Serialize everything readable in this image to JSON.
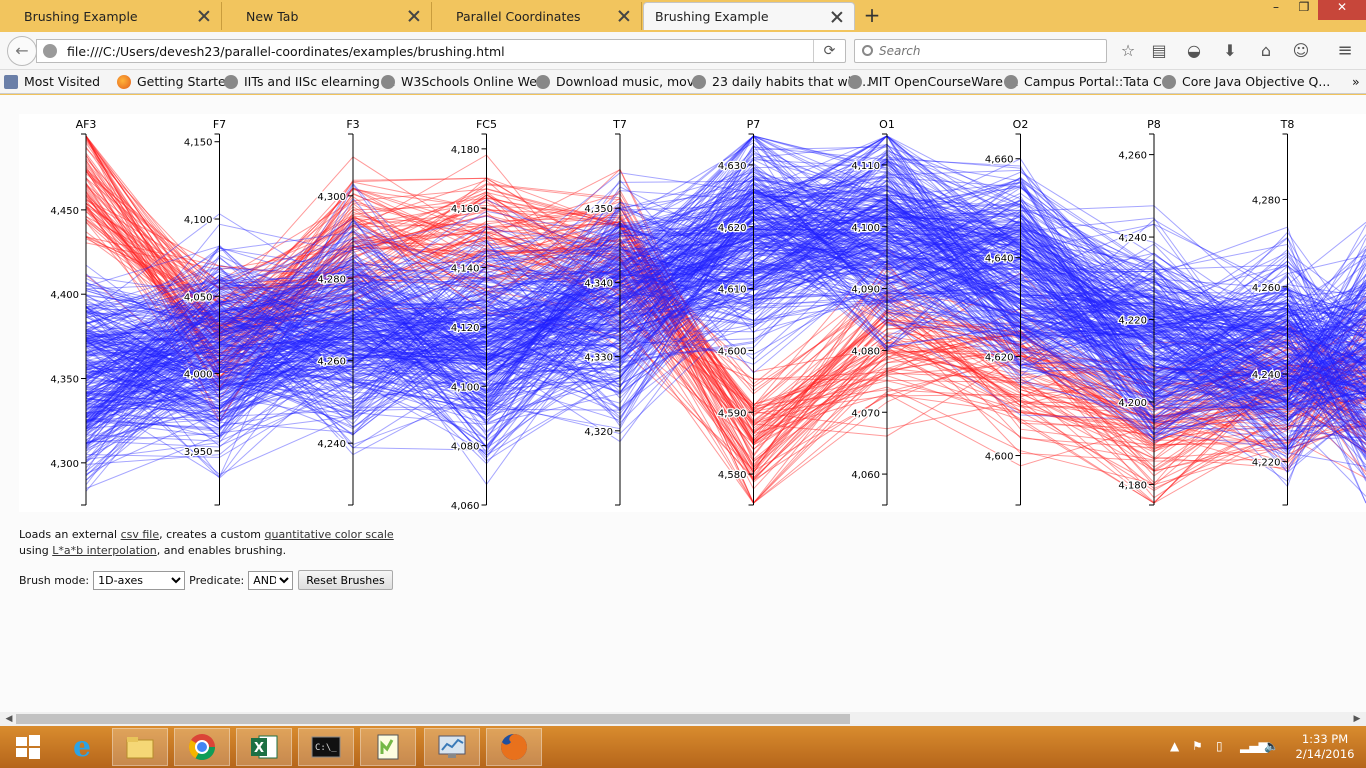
{
  "window": {
    "tabs": [
      {
        "label": "Brushing Example",
        "active": false
      },
      {
        "label": "New Tab",
        "active": false
      },
      {
        "label": "Parallel Coordinates",
        "active": false
      },
      {
        "label": "Brushing Example",
        "active": true
      }
    ]
  },
  "navbar": {
    "url": "file:///C:/Users/devesh23/parallel-coordinates/examples/brushing.html",
    "search_placeholder": "Search"
  },
  "bookmarks": [
    "Most Visited",
    "Getting Started",
    "IITs and IISc elearning ...",
    "W3Schools Online We...",
    "Download music, mov...",
    "23 daily habits that will...",
    "MIT OpenCourseWare ...",
    "Campus Portal::Tata C...",
    "Core Java Objective Q..."
  ],
  "page": {
    "desc_1": "Loads an external ",
    "link_csv": "csv file",
    "desc_2": ", creates a custom ",
    "link_scale": "quantitative color scale",
    "desc_3": " using ",
    "link_lab": "L*a*b interpolation",
    "desc_4": ", and enables brushing.",
    "brush_label": "Brush mode:",
    "brush_value": "1D-axes",
    "predicate_label": "Predicate:",
    "predicate_value": "AND",
    "reset_label": "Reset Brushes"
  },
  "chart_data": {
    "type": "parallel-coordinates",
    "colors": {
      "high": "#ff2020",
      "low": "#2020ff"
    },
    "axes": [
      {
        "name": "AF3",
        "range": [
          4275,
          4495
        ],
        "ticks": [
          4300,
          4350,
          4400,
          4450
        ]
      },
      {
        "name": "F7",
        "range": [
          3915,
          4155
        ],
        "ticks": [
          3950,
          4000,
          4050,
          4100,
          4150
        ]
      },
      {
        "name": "F3",
        "range": [
          4225,
          4315
        ],
        "ticks": [
          4240,
          4260,
          4280,
          4300
        ]
      },
      {
        "name": "FC5",
        "range": [
          4060,
          4185
        ],
        "ticks": [
          4060,
          4080,
          4100,
          4120,
          4140,
          4160,
          4180
        ]
      },
      {
        "name": "T7",
        "range": [
          4310,
          4360
        ],
        "ticks": [
          4320,
          4330,
          4340,
          4350
        ]
      },
      {
        "name": "P7",
        "range": [
          4575,
          4635
        ],
        "ticks": [
          4580,
          4590,
          4600,
          4610,
          4620,
          4630
        ]
      },
      {
        "name": "O1",
        "range": [
          4055,
          4115
        ],
        "ticks": [
          4060,
          4070,
          4080,
          4090,
          4100,
          4110
        ]
      },
      {
        "name": "O2",
        "range": [
          4590,
          4665
        ],
        "ticks": [
          4600,
          4620,
          4640,
          4660
        ]
      },
      {
        "name": "P8",
        "range": [
          4175,
          4265
        ],
        "ticks": [
          4180,
          4200,
          4220,
          4240,
          4260
        ]
      },
      {
        "name": "T8",
        "range": [
          4210,
          4295
        ],
        "ticks": [
          4220,
          4240,
          4260,
          4280
        ]
      }
    ],
    "line_count": 400
  },
  "taskbar": {
    "apps": [
      "start-icon",
      "internet-explorer-icon",
      "file-explorer-icon",
      "chrome-icon",
      "excel-icon",
      "cmd-icon",
      "notepadpp-icon",
      "task-manager-icon",
      "firefox-icon"
    ],
    "time": "1:33 PM",
    "date": "2/14/2016"
  }
}
